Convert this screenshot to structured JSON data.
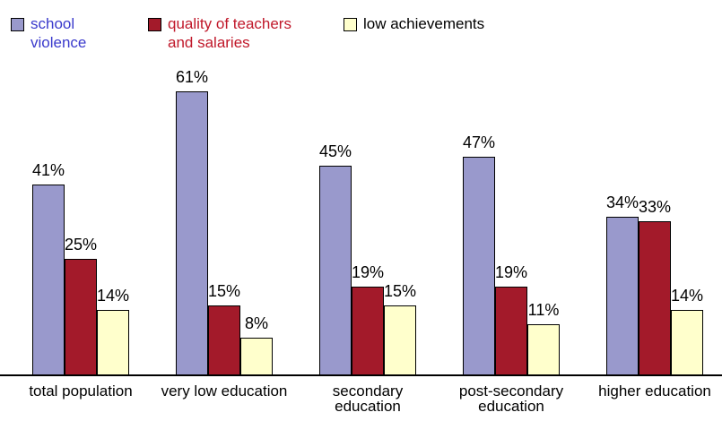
{
  "chart_data": {
    "type": "bar",
    "categories": [
      "total population",
      "very low education",
      "secondary education",
      "post-secondary education",
      "higher education"
    ],
    "series": [
      {
        "name": "school violence",
        "color": "#9999cc",
        "values": [
          41,
          61,
          45,
          47,
          34
        ],
        "value_labels": [
          "41%",
          "61%",
          "45%",
          "47%",
          "34%"
        ]
      },
      {
        "name": "quality of teachers and salaries",
        "color": "#a31a2a",
        "values": [
          25,
          15,
          19,
          19,
          33
        ],
        "value_labels": [
          "25%",
          "15%",
          "19%",
          "19%",
          "33%"
        ]
      },
      {
        "name": "low achievements",
        "color": "#ffffcc",
        "values": [
          14,
          8,
          15,
          11,
          14
        ],
        "value_labels": [
          "14%",
          "8%",
          "15%",
          "11%",
          "14%"
        ]
      }
    ]
  }
}
